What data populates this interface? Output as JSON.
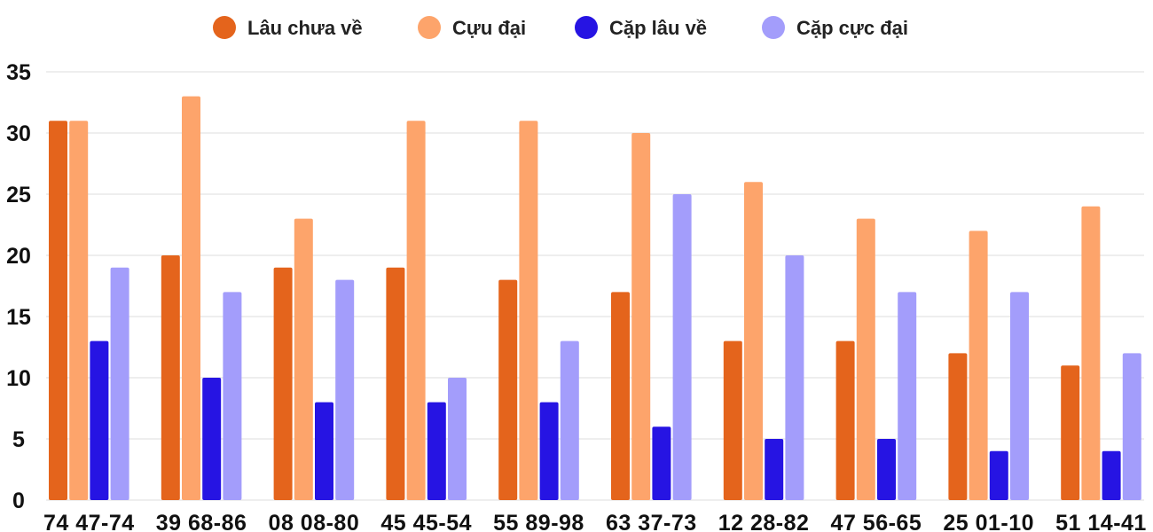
{
  "chart_data": {
    "type": "bar",
    "categories": [
      "74 47-74",
      "39 68-86",
      "08 08-80",
      "45 45-54",
      "55 89-98",
      "63 37-73",
      "12 28-82",
      "47 56-65",
      "25 01-10",
      "51 14-41"
    ],
    "series": [
      {
        "name": "Lâu chưa về",
        "color": "#e4641c",
        "values": [
          31,
          20,
          19,
          19,
          18,
          17,
          13,
          13,
          12,
          11
        ]
      },
      {
        "name": "Cựu đại",
        "color": "#fda46b",
        "values": [
          31,
          33,
          23,
          31,
          31,
          30,
          26,
          23,
          22,
          24
        ]
      },
      {
        "name": "Cặp lâu về",
        "color": "#2614e3",
        "values": [
          13,
          10,
          8,
          8,
          8,
          6,
          5,
          5,
          4,
          4
        ]
      },
      {
        "name": "Cặp cực đại",
        "color": "#a39dfb",
        "values": [
          19,
          17,
          18,
          10,
          13,
          25,
          20,
          17,
          17,
          12
        ]
      }
    ],
    "yticks": [
      "0",
      "5",
      "10",
      "15",
      "20",
      "25",
      "30",
      "35"
    ],
    "ylim": [
      0,
      35
    ],
    "grid": true,
    "legend_position": "top-center"
  }
}
